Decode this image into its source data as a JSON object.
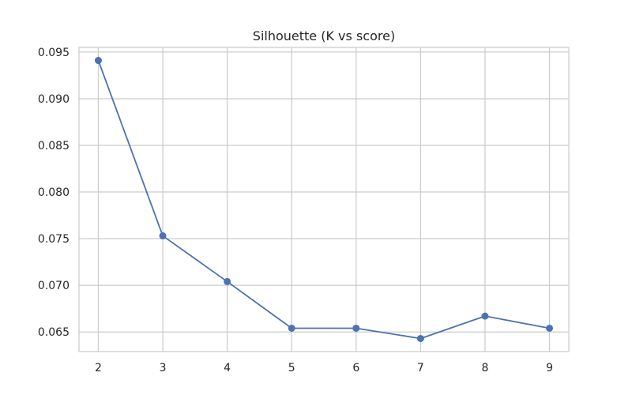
{
  "chart_data": {
    "type": "line",
    "title": "Silhouette (K vs score)",
    "xlabel": "",
    "ylabel": "",
    "x": [
      2,
      3,
      4,
      5,
      6,
      7,
      8,
      9
    ],
    "series": [
      {
        "values": [
          0.0941,
          0.0753,
          0.0704,
          0.0654,
          0.0654,
          0.0643,
          0.0667,
          0.0654
        ],
        "color": "#4c72b0",
        "marker": "circle"
      }
    ],
    "xticks": [
      "2",
      "3",
      "4",
      "5",
      "6",
      "7",
      "8",
      "9"
    ],
    "yticks": [
      "0.065",
      "0.070",
      "0.075",
      "0.080",
      "0.085",
      "0.090",
      "0.095"
    ],
    "xlim": [
      1.7,
      9.3
    ],
    "ylim": [
      0.0629,
      0.0955
    ],
    "grid": true,
    "style": {
      "background": "#ffffff",
      "grid_color": "#cccccc",
      "axes_edge_color": "#cccccc",
      "text_color": "#262626"
    }
  }
}
